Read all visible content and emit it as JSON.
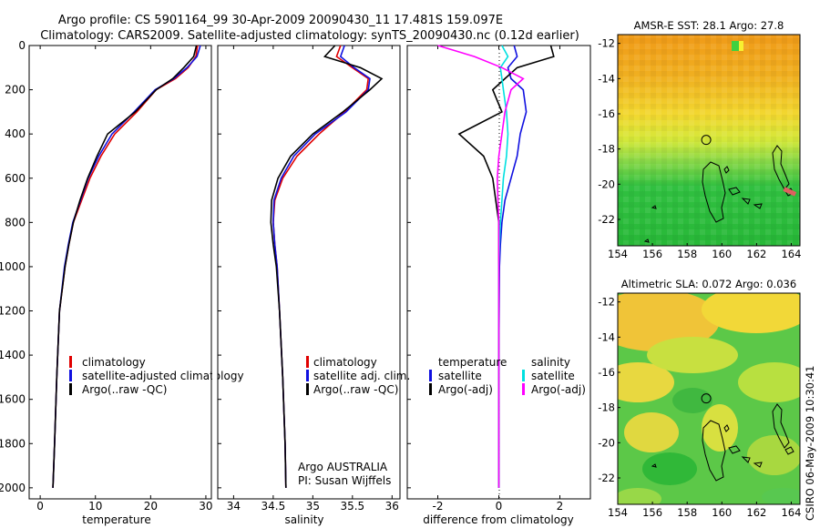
{
  "header": {
    "line1": "Argo profile: CS 5901164_99 30-Apr-2009 20090430_11 17.481S 159.097E",
    "line2": "Climatology: CARS2009. Satellite-adjusted climatology: synTS_20090430.nc (0.12d earlier)"
  },
  "side_stamp": "CSIRO 06-May-2009 10:30:41",
  "colors": {
    "climatology": "#e00000",
    "satellite": "#1010e0",
    "argo": "#000000",
    "sat_salinity": "#00e0e0",
    "argo_salinity": "#ff00ff"
  },
  "chart_data": [
    {
      "id": "temperature",
      "type": "line",
      "xlabel": "temperature",
      "ylabel": "",
      "xlim": [
        -2,
        31
      ],
      "ylim": [
        2050,
        0
      ],
      "y_reversed": true,
      "xticks": [
        0,
        10,
        20,
        30
      ],
      "xtick_labels": [
        "0",
        "10",
        "20",
        "30"
      ],
      "yticks": [
        0,
        200,
        400,
        600,
        800,
        1000,
        1200,
        1400,
        1600,
        1800,
        2000
      ],
      "ytick_labels": [
        "0",
        "200",
        "400",
        "600",
        "800",
        "1000",
        "1200",
        "1400",
        "1600",
        "1800",
        "2000"
      ],
      "series": [
        {
          "name": "climatology",
          "color": "#e00000",
          "x": [
            28.5,
            28.2,
            26.8,
            24.5,
            21,
            17.5,
            13.5,
            11,
            9,
            7.5,
            6,
            5.2,
            4.5,
            3.5,
            3,
            2.6,
            2.3
          ],
          "y": [
            0,
            50,
            100,
            150,
            200,
            300,
            400,
            500,
            600,
            700,
            800,
            900,
            1000,
            1200,
            1500,
            1800,
            2000
          ]
        },
        {
          "name": "satellite-adjusted climatology",
          "color": "#1010e0",
          "x": [
            29,
            28.4,
            26.6,
            24.2,
            20.8,
            17,
            13,
            10.6,
            8.7,
            7.3,
            5.9,
            5.1,
            4.4,
            3.5,
            3,
            2.6,
            2.3
          ],
          "y": [
            0,
            50,
            100,
            150,
            200,
            300,
            400,
            500,
            600,
            700,
            800,
            900,
            1000,
            1200,
            1500,
            1800,
            2000
          ]
        },
        {
          "name": "Argo(..raw -QC)",
          "color": "#000000",
          "x": [
            28.3,
            27.8,
            26,
            24,
            21,
            17.2,
            12.2,
            10.3,
            8.6,
            7.2,
            6,
            5.2,
            4.5,
            3.5,
            3,
            2.6,
            2.3
          ],
          "y": [
            0,
            50,
            100,
            150,
            200,
            300,
            400,
            500,
            600,
            700,
            800,
            900,
            1000,
            1200,
            1500,
            1800,
            2000
          ]
        }
      ],
      "legend": [
        {
          "label": "climatology",
          "color": "#e00000"
        },
        {
          "label": "satellite-adjusted climatology",
          "color": "#1010e0"
        },
        {
          "label": "Argo(..raw -QC)",
          "color": "#000000"
        }
      ]
    },
    {
      "id": "salinity",
      "type": "line",
      "xlabel": "salinity",
      "ylabel": "",
      "xlim": [
        33.8,
        36.1
      ],
      "ylim": [
        2050,
        0
      ],
      "y_reversed": true,
      "xticks": [
        34,
        34.5,
        35,
        35.5,
        36
      ],
      "xtick_labels": [
        "34",
        "34.5",
        "35",
        "35.5",
        "36"
      ],
      "series": [
        {
          "name": "climatology",
          "color": "#e00000",
          "x": [
            35.35,
            35.3,
            35.5,
            35.7,
            35.68,
            35.4,
            35.08,
            34.8,
            34.62,
            34.52,
            34.5,
            34.52,
            34.55,
            34.58,
            34.62,
            34.65,
            34.66
          ],
          "y": [
            0,
            50,
            100,
            150,
            200,
            300,
            400,
            500,
            600,
            700,
            800,
            900,
            1000,
            1200,
            1500,
            1800,
            2000
          ]
        },
        {
          "name": "satellite adj. clim.",
          "color": "#1010e0",
          "x": [
            35.4,
            35.35,
            35.52,
            35.72,
            35.7,
            35.42,
            35.03,
            34.76,
            34.6,
            34.51,
            34.5,
            34.52,
            34.55,
            34.58,
            34.62,
            34.65,
            34.66
          ],
          "y": [
            0,
            50,
            100,
            150,
            200,
            300,
            400,
            500,
            600,
            700,
            800,
            900,
            1000,
            1200,
            1500,
            1800,
            2000
          ]
        },
        {
          "name": "Argo(..raw -QC)",
          "color": "#000000",
          "x": [
            35.28,
            35.15,
            35.6,
            35.87,
            35.72,
            35.38,
            35.0,
            34.72,
            34.56,
            34.48,
            34.47,
            34.5,
            34.54,
            34.58,
            34.62,
            34.65,
            34.66
          ],
          "y": [
            0,
            50,
            100,
            150,
            200,
            300,
            400,
            500,
            600,
            700,
            800,
            900,
            1000,
            1200,
            1500,
            1800,
            2000
          ]
        }
      ],
      "legend": [
        {
          "label": "climatology",
          "color": "#e00000"
        },
        {
          "label": "satellite adj. clim.",
          "color": "#1010e0"
        },
        {
          "label": "Argo(..raw -QC)",
          "color": "#000000"
        }
      ],
      "annotation": [
        "Argo AUSTRALIA",
        "PI: Susan Wijffels"
      ]
    },
    {
      "id": "difference",
      "type": "line",
      "xlabel": "difference from climatology",
      "ylabel": "",
      "xlim": [
        -3,
        3
      ],
      "ylim": [
        2050,
        0
      ],
      "y_reversed": true,
      "xticks": [
        -2,
        0,
        2
      ],
      "xtick_labels": [
        "-2",
        "0",
        "2"
      ],
      "series": [
        {
          "name": "temperature satellite",
          "color": "#1010e0",
          "x": [
            0.5,
            0.6,
            0.3,
            0.4,
            0.8,
            0.9,
            0.7,
            0.6,
            0.4,
            0.2,
            0.1,
            0.05,
            0.02,
            0,
            0,
            0
          ],
          "y": [
            0,
            50,
            100,
            150,
            200,
            300,
            400,
            500,
            600,
            700,
            800,
            900,
            1000,
            1400,
            1800,
            2000
          ]
        },
        {
          "name": "temperature Argo(-adj)",
          "color": "#000000",
          "x": [
            1.7,
            1.8,
            0.6,
            0.2,
            -0.2,
            0.1,
            -1.3,
            -0.5,
            -0.2,
            -0.1,
            0,
            0,
            0,
            0,
            0,
            0
          ],
          "y": [
            0,
            50,
            100,
            150,
            200,
            300,
            400,
            500,
            600,
            700,
            800,
            900,
            1000,
            1400,
            1800,
            2000
          ]
        },
        {
          "name": "salinity satellite",
          "color": "#00e0e0",
          "x": [
            0.1,
            0.3,
            0.05,
            0.1,
            0.15,
            0.25,
            0.3,
            0.25,
            0.15,
            0.1,
            0.05,
            0.02,
            0,
            0,
            0,
            0
          ],
          "y": [
            0,
            50,
            100,
            150,
            200,
            300,
            400,
            500,
            600,
            700,
            800,
            900,
            1000,
            1400,
            1800,
            2000
          ]
        },
        {
          "name": "salinity Argo(-adj)",
          "color": "#ff00ff",
          "x": [
            -2,
            -0.8,
            0.1,
            0.8,
            0.4,
            0.2,
            0.1,
            0,
            -0.05,
            -0.03,
            0,
            0,
            0,
            0,
            0,
            0
          ],
          "y": [
            0,
            50,
            100,
            150,
            200,
            300,
            400,
            500,
            600,
            700,
            800,
            900,
            1000,
            1400,
            1800,
            2000
          ]
        }
      ],
      "legend_temperature_title": "temperature",
      "legend_salinity_title": "salinity",
      "legend": [
        {
          "label": "satellite",
          "color": "#1010e0",
          "column": "temperature"
        },
        {
          "label": "Argo(-adj)",
          "color": "#000000",
          "column": "temperature"
        },
        {
          "label": "satellite",
          "color": "#00e0e0",
          "column": "salinity"
        },
        {
          "label": "Argo(-adj)",
          "color": "#ff00ff",
          "column": "salinity"
        }
      ]
    },
    {
      "id": "sst_map",
      "type": "heatmap",
      "title": "AMSR-E SST: 28.1 Argo: 27.8",
      "xlim": [
        154,
        164.5
      ],
      "ylim": [
        -23.5,
        -11.5
      ],
      "xticks": [
        154,
        156,
        158,
        160,
        162,
        164
      ],
      "xtick_labels": [
        "154",
        "156",
        "158",
        "160",
        "162",
        "164"
      ],
      "yticks": [
        -12,
        -14,
        -16,
        -18,
        -20,
        -22
      ],
      "ytick_labels": [
        "-12",
        "-14",
        "-16",
        "-18",
        "-20",
        "-22"
      ],
      "argo_position": {
        "lon": 159.097,
        "lat": -17.481
      }
    },
    {
      "id": "sla_map",
      "type": "heatmap",
      "title": "Altimetric SLA: 0.072 Argo: 0.036",
      "xlim": [
        154,
        164.5
      ],
      "ylim": [
        -23.5,
        -11.5
      ],
      "xticks": [
        154,
        156,
        158,
        160,
        162,
        164
      ],
      "xtick_labels": [
        "154",
        "156",
        "158",
        "160",
        "162",
        "164"
      ],
      "yticks": [
        -12,
        -14,
        -16,
        -18,
        -20,
        -22
      ],
      "ytick_labels": [
        "-12",
        "-14",
        "-16",
        "-18",
        "-20",
        "-22"
      ],
      "argo_position": {
        "lon": 159.097,
        "lat": -17.481
      }
    }
  ]
}
